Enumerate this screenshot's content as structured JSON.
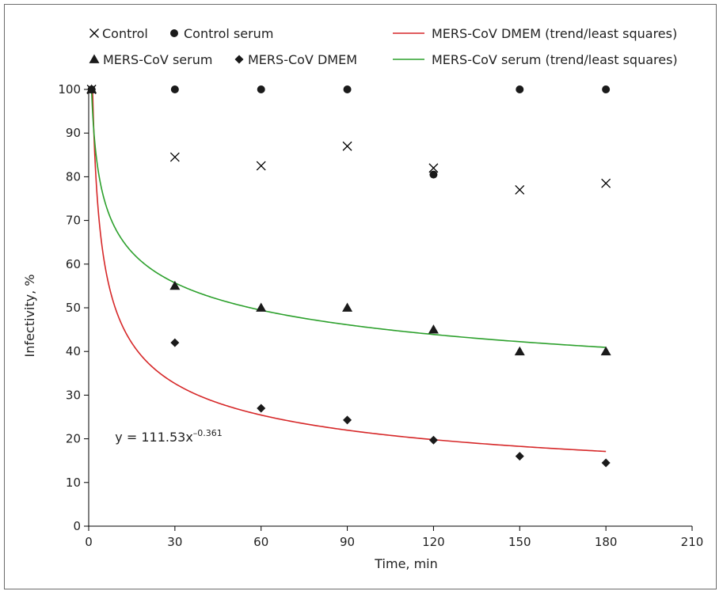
{
  "chart_data": {
    "type": "scatter",
    "xlabel": "Time, min",
    "ylabel": "Infectivity, %",
    "xlim": [
      0,
      210
    ],
    "ylim": [
      0,
      100
    ],
    "x_ticks": [
      0,
      30,
      60,
      90,
      120,
      150,
      180,
      210
    ],
    "y_ticks": [
      0,
      10,
      20,
      30,
      40,
      50,
      60,
      70,
      80,
      90,
      100
    ],
    "grid": false,
    "legend_position": "top",
    "series": [
      {
        "name": "Control",
        "marker": "x",
        "color": "#000000",
        "points": [
          [
            1,
            100
          ],
          [
            30,
            84.5
          ],
          [
            60,
            82.5
          ],
          [
            90,
            87
          ],
          [
            120,
            82
          ],
          [
            150,
            77
          ],
          [
            180,
            78.5
          ]
        ]
      },
      {
        "name": "Control serum",
        "marker": "circle",
        "color": "#1a1a1a",
        "points": [
          [
            1,
            100
          ],
          [
            30,
            100
          ],
          [
            60,
            100
          ],
          [
            90,
            100
          ],
          [
            120,
            80.5
          ],
          [
            150,
            100
          ],
          [
            180,
            100
          ]
        ]
      },
      {
        "name": "MERS-CoV serum",
        "marker": "triangle",
        "color": "#1a1a1a",
        "points": [
          [
            1,
            100
          ],
          [
            30,
            55
          ],
          [
            60,
            50
          ],
          [
            90,
            50
          ],
          [
            120,
            45
          ],
          [
            150,
            40
          ],
          [
            180,
            40
          ]
        ]
      },
      {
        "name": "MERS-CoV DMEM",
        "marker": "diamond",
        "color": "#1a1a1a",
        "points": [
          [
            1,
            100
          ],
          [
            30,
            42
          ],
          [
            60,
            27
          ],
          [
            90,
            24.3
          ],
          [
            120,
            19.7
          ],
          [
            150,
            16
          ],
          [
            180,
            14.5
          ]
        ]
      }
    ],
    "trendlines": [
      {
        "name": "MERS-CoV DMEM (trend/least squares)",
        "color": "#d62728",
        "model": "power",
        "a": 111.53,
        "b": -0.361,
        "x_range": [
          1,
          180
        ]
      },
      {
        "name": "MERS-CoV serum (trend/least squares)",
        "color": "#2ca02c",
        "model": "power",
        "a": 100,
        "b": -0.172,
        "x_range": [
          1,
          180
        ]
      }
    ],
    "annotation": {
      "text": "y = 111.53x",
      "superscript": "–0.361",
      "at": [
        10,
        20.5
      ]
    }
  }
}
